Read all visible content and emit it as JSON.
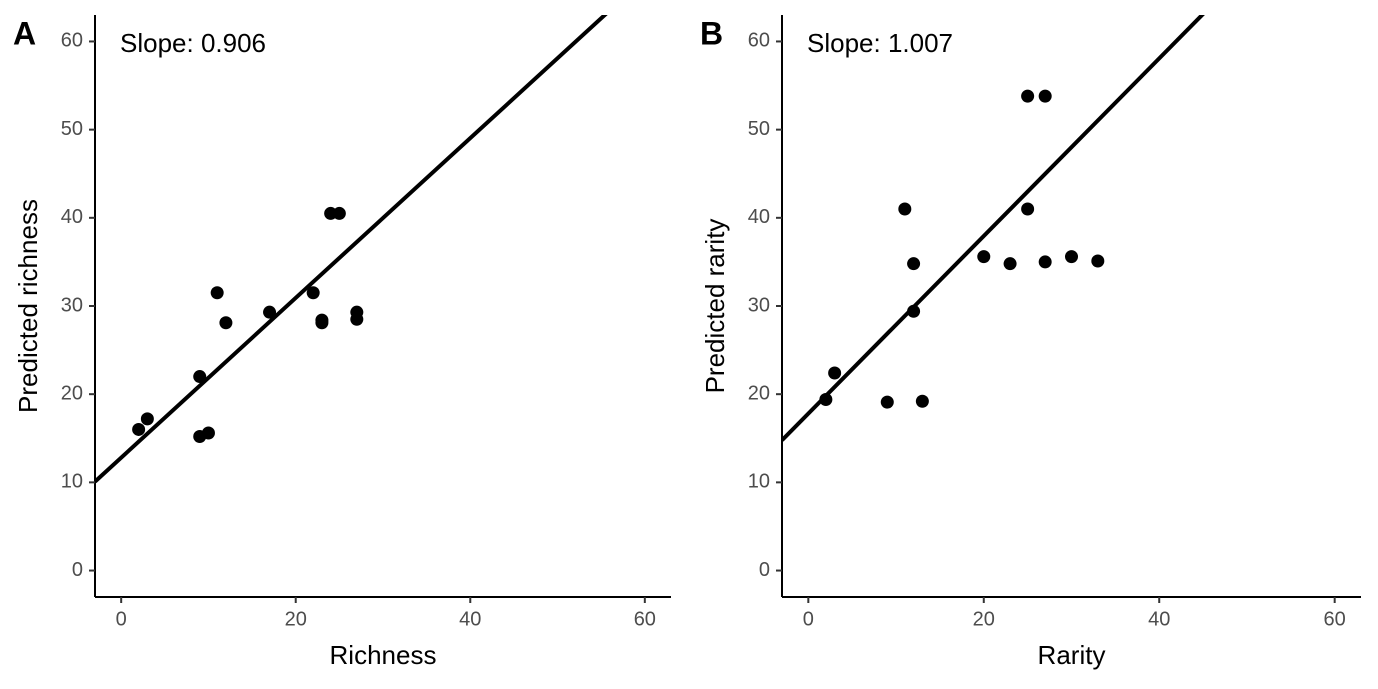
{
  "chart_data": [
    {
      "type": "scatter",
      "panel_label": "A",
      "annotation": "Slope: 0.906",
      "xlabel": "Richness",
      "ylabel": "Predicted richness",
      "x": [
        2,
        3,
        9,
        10,
        9,
        11,
        12,
        17,
        22,
        23,
        23,
        24,
        25,
        27,
        27
      ],
      "values": [
        16.0,
        17.2,
        15.2,
        15.6,
        22.0,
        31.5,
        28.1,
        29.3,
        31.5,
        28.4,
        28.1,
        40.5,
        40.5,
        29.3,
        28.5
      ],
      "color": "#000000",
      "fit": {
        "slope": 0.906,
        "intercept": 12.8
      },
      "xlim": [
        -3,
        63
      ],
      "ylim": [
        -3,
        63
      ],
      "xticks": [
        0,
        20,
        40,
        60
      ],
      "yticks": [
        0,
        10,
        20,
        30,
        40,
        50,
        60
      ]
    },
    {
      "type": "scatter",
      "panel_label": "B",
      "annotation": "Slope: 1.007",
      "xlabel": "Rarity",
      "ylabel": "Predicted rarity",
      "x": [
        2,
        3,
        9,
        13,
        11,
        12,
        12,
        20,
        23,
        25,
        25,
        27,
        27,
        30,
        33
      ],
      "values": [
        19.4,
        22.4,
        19.1,
        19.2,
        41.0,
        34.8,
        29.4,
        35.6,
        34.8,
        41.0,
        53.8,
        53.8,
        35.0,
        35.6,
        35.1
      ],
      "color": "#000000",
      "fit": {
        "slope": 1.007,
        "intercept": 17.8
      },
      "xlim": [
        -3,
        63
      ],
      "ylim": [
        -3,
        63
      ],
      "xticks": [
        0,
        20,
        40,
        60
      ],
      "yticks": [
        0,
        10,
        20,
        30,
        40,
        50,
        60
      ]
    }
  ]
}
